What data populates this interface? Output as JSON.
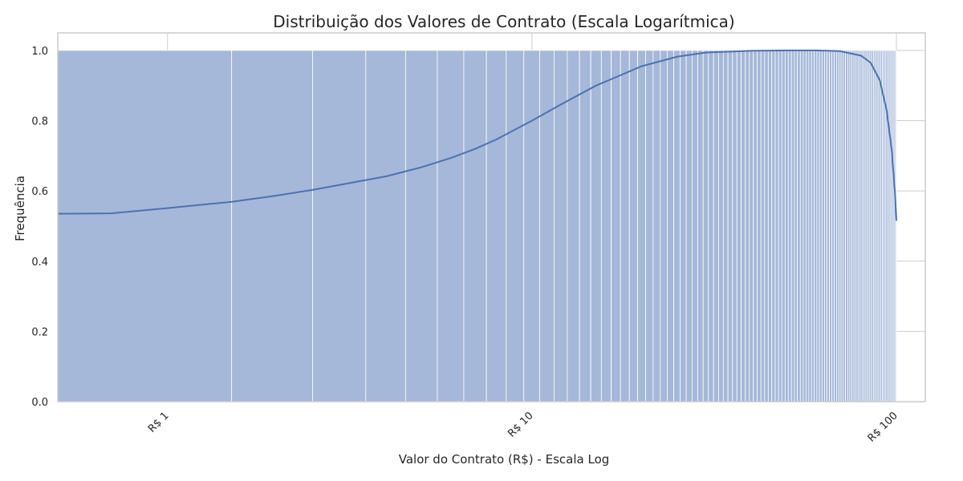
{
  "chart_data": {
    "type": "histogram",
    "title": "Distribuição dos Valores de Contrato (Escala Logarítmica)",
    "xlabel": "Valor do Contrato (R$) - Escala Log",
    "ylabel": "Frequência",
    "x_scale": "log",
    "x_range": [
      0.5,
      120
    ],
    "y_range": [
      0.0,
      1.05
    ],
    "y_ticks": [
      "0.0",
      "0.2",
      "0.4",
      "0.6",
      "0.8",
      "1.0"
    ],
    "x_ticks": [
      {
        "value": 1,
        "label": "R$ 1"
      },
      {
        "value": 10,
        "label": "R$ 10"
      },
      {
        "value": 100,
        "label": "R$ 100"
      }
    ],
    "bars": {
      "values_from": 0.5,
      "values_to": 100,
      "step": 1,
      "frequency": 1.0,
      "color": "#a5b8d9",
      "edge_color": "#ffffff"
    },
    "kde_curve": {
      "color": "#4c72b0",
      "points": [
        [
          0.5,
          0.535
        ],
        [
          0.7,
          0.536
        ],
        [
          1.0,
          0.551
        ],
        [
          1.5,
          0.569
        ],
        [
          2.0,
          0.587
        ],
        [
          2.5,
          0.603
        ],
        [
          3.0,
          0.618
        ],
        [
          4.0,
          0.642
        ],
        [
          5.0,
          0.668
        ],
        [
          6.0,
          0.694
        ],
        [
          7.0,
          0.72
        ],
        [
          8.0,
          0.747
        ],
        [
          10.0,
          0.8
        ],
        [
          12.0,
          0.846
        ],
        [
          15.0,
          0.9
        ],
        [
          20.0,
          0.955
        ],
        [
          25.0,
          0.982
        ],
        [
          30.0,
          0.994
        ],
        [
          40.0,
          0.999
        ],
        [
          50.0,
          1.0
        ],
        [
          60.0,
          1.0
        ],
        [
          70.0,
          0.998
        ],
        [
          80.0,
          0.985
        ],
        [
          85.0,
          0.965
        ],
        [
          90.0,
          0.915
        ],
        [
          94.0,
          0.83
        ],
        [
          97.0,
          0.72
        ],
        [
          99.0,
          0.6
        ],
        [
          100.0,
          0.515
        ]
      ]
    },
    "grid": true,
    "colors": {
      "grid": "#cccccc",
      "axes_edge": "#cccccc",
      "text": "#262626"
    }
  }
}
